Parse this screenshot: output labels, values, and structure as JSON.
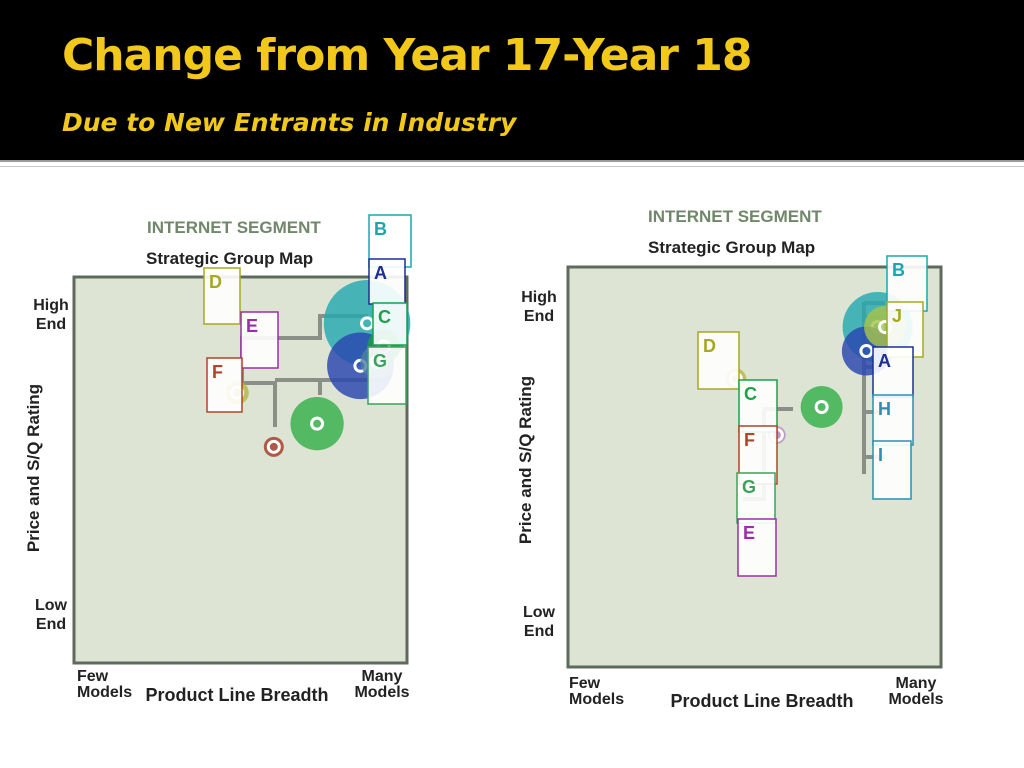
{
  "slide": {
    "title": "Change from Year 17-Year 18",
    "subtitle": "Due to New Entrants in Industry"
  },
  "colors": {
    "title": "#f2c81b",
    "plot_bg": "#dde4d4",
    "plot_border": "#5e6a5c",
    "connector": "#8a8f88",
    "segment_title": "#71876a"
  },
  "chart_data": [
    {
      "type": "scatter",
      "segment": "INTERNET SEGMENT",
      "title": "Strategic Group Map",
      "xlabel": "Product Line Breadth",
      "ylabel": "Price and S/Q Rating",
      "x_tick_labels": [
        [
          "Few",
          "Models"
        ],
        [
          "Many",
          "Models"
        ]
      ],
      "y_tick_labels": [
        [
          "High",
          "End"
        ],
        [
          "Low",
          "End"
        ]
      ],
      "xlim": [
        0,
        100
      ],
      "ylim": [
        0,
        100
      ],
      "groups": [
        {
          "x": 88,
          "y": 88,
          "size": 13,
          "color": "#24aab0",
          "label": "B"
        },
        {
          "x": 86,
          "y": 77,
          "size": 10,
          "color": "#2a45b0",
          "label": "A"
        },
        {
          "x": 93,
          "y": 82,
          "size": 5,
          "color": "#1b9a4d",
          "label": "C"
        },
        {
          "x": 91,
          "y": 78,
          "size": 5,
          "color": "#4e7fa5",
          "label": "G"
        },
        {
          "x": 73,
          "y": 62,
          "size": 8,
          "color": "#36b04a",
          "label": null
        },
        {
          "x": 49,
          "y": 70,
          "size": 3.5,
          "color": "#b9b840",
          "label": null
        },
        {
          "x": 60,
          "y": 56,
          "size": 3,
          "color": "#a53b2a",
          "label": null
        }
      ],
      "labels": [
        {
          "text": "B",
          "color": "#1aa6b0"
        },
        {
          "text": "D",
          "color": "#a6a820"
        },
        {
          "text": "A",
          "color": "#1c2e96"
        },
        {
          "text": "E",
          "color": "#9a2ea8"
        },
        {
          "text": "C",
          "color": "#1aa14a"
        },
        {
          "text": "F",
          "color": "#b0442a"
        },
        {
          "text": "G",
          "color": "#3aa25a"
        }
      ]
    },
    {
      "type": "scatter",
      "segment": "INTERNET SEGMENT",
      "title": "Strategic Group Map",
      "xlabel": "Product Line Breadth",
      "ylabel": "Price and S/Q Rating",
      "x_tick_labels": [
        [
          "Few",
          "Models"
        ],
        [
          "Many",
          "Models"
        ]
      ],
      "y_tick_labels": [
        [
          "High",
          "End"
        ],
        [
          "Low",
          "End"
        ]
      ],
      "xlim": [
        0,
        100
      ],
      "ylim": [
        0,
        100
      ],
      "groups": [
        {
          "x": 83,
          "y": 85,
          "size": 10,
          "color": "#24aab0",
          "label": "B"
        },
        {
          "x": 85,
          "y": 85,
          "size": 6,
          "color": "#a6c34a",
          "label": "J"
        },
        {
          "x": 80,
          "y": 79,
          "size": 7,
          "color": "#2a45b0",
          "label": "A"
        },
        {
          "x": 68,
          "y": 65,
          "size": 6,
          "color": "#36b04a",
          "label": null
        },
        {
          "x": 45,
          "y": 72,
          "size": 3,
          "color": "#b9b840",
          "label": null
        },
        {
          "x": 56,
          "y": 58,
          "size": 2.5,
          "color": "#b288c8",
          "label": null
        }
      ],
      "labels": [
        {
          "text": "B",
          "color": "#1aa6b0"
        },
        {
          "text": "J",
          "color": "#a6a820"
        },
        {
          "text": "D",
          "color": "#a6a820"
        },
        {
          "text": "A",
          "color": "#1c2e96"
        },
        {
          "text": "C",
          "color": "#1aa14a"
        },
        {
          "text": "H",
          "color": "#2a8fb0"
        },
        {
          "text": "F",
          "color": "#b0442a"
        },
        {
          "text": "I",
          "color": "#2a8fb0"
        },
        {
          "text": "G",
          "color": "#3aa25a"
        },
        {
          "text": "E",
          "color": "#9a2ea8"
        }
      ]
    }
  ]
}
